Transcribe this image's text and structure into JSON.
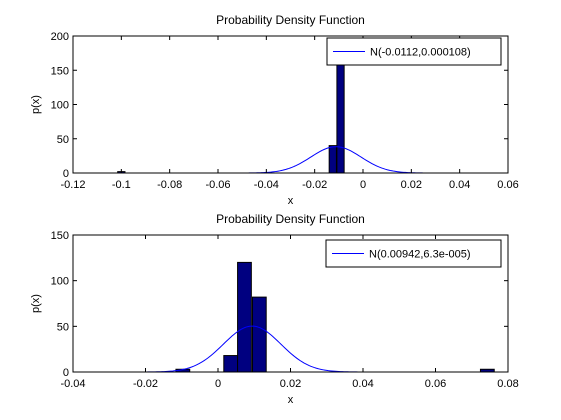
{
  "chart_data": [
    {
      "type": "bar",
      "title": "Probability Density Function",
      "xlabel": "x",
      "ylabel": "p(x)",
      "xlim": [
        -0.12,
        0.06
      ],
      "ylim": [
        0,
        200
      ],
      "xticks": [
        -0.12,
        -0.1,
        -0.08,
        -0.06,
        -0.04,
        -0.02,
        0,
        0.02,
        0.04,
        0.06
      ],
      "xtick_labels": [
        "-0.12",
        "-0.1",
        "-0.08",
        "-0.06",
        "-0.04",
        "-0.02",
        "0",
        "0.02",
        "0.04",
        "0.06"
      ],
      "yticks": [
        0,
        50,
        100,
        150,
        200
      ],
      "ytick_labels": [
        "0",
        "50",
        "100",
        "150",
        "200"
      ],
      "bar_color": "#000080",
      "bars": [
        {
          "x": -0.1,
          "y": 2
        },
        {
          "x": -0.0125,
          "y": 40
        },
        {
          "x": -0.0093,
          "y": 160
        }
      ],
      "bar_width": 0.003,
      "curve": {
        "name": "N(-0.0112,0.000108)",
        "mean": -0.0112,
        "variance": 0.000108,
        "x_range": [
          -0.0725,
          0.0525
        ],
        "color": "#0000ff"
      },
      "legend": "top-right",
      "grid": false
    },
    {
      "type": "bar",
      "title": "Probability Density Function",
      "xlabel": "x",
      "ylabel": "p(x)",
      "xlim": [
        -0.04,
        0.08
      ],
      "ylim": [
        0,
        150
      ],
      "xticks": [
        -0.04,
        -0.02,
        0,
        0.02,
        0.04,
        0.06,
        0.08
      ],
      "xtick_labels": [
        "-0.04",
        "-0.02",
        "0",
        "0.02",
        "0.04",
        "0.06",
        "0.08"
      ],
      "yticks": [
        0,
        50,
        100,
        150
      ],
      "ytick_labels": [
        "0",
        "50",
        "100",
        "150"
      ],
      "bar_color": "#000080",
      "bars": [
        {
          "x": -0.0097,
          "y": 3
        },
        {
          "x": 0.0035,
          "y": 18
        },
        {
          "x": 0.0073,
          "y": 120
        },
        {
          "x": 0.0114,
          "y": 82
        },
        {
          "x": 0.0743,
          "y": 3
        }
      ],
      "bar_width": 0.0038,
      "curve": {
        "name": "N(0.00942,6.3e-005)",
        "mean": 0.00942,
        "variance": 6.3e-05,
        "x_range": [
          -0.04,
          0.0565
        ],
        "color": "#0000ff"
      },
      "legend": "top-right",
      "grid": false
    }
  ]
}
